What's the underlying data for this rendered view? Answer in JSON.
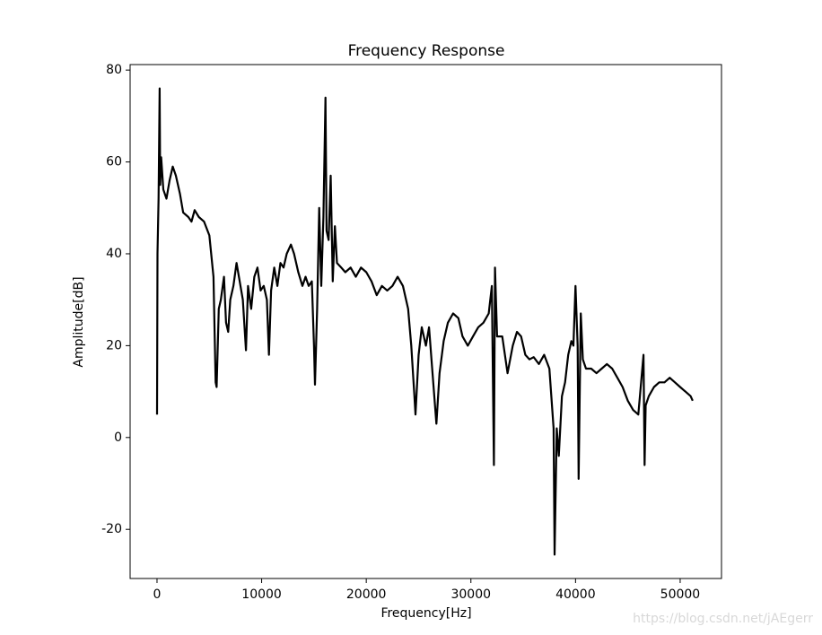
{
  "chart_data": {
    "type": "line",
    "title": "Frequency Response",
    "x_label": "Frequency[Hz]",
    "y_label": "Amplitude[dB]",
    "watermark": "https://blog.csdn.net/jAEgerr",
    "xlim": [
      -2570,
      53950
    ],
    "ylim": [
      -30.7,
      81.2
    ],
    "xticks": [
      0,
      10000,
      20000,
      30000,
      40000,
      50000
    ],
    "yticks": [
      -20,
      0,
      20,
      40,
      60,
      80
    ],
    "series": [
      {
        "color": "#000000",
        "x": [
          0,
          50,
          150,
          250,
          300,
          400,
          600,
          900,
          1200,
          1500,
          1800,
          2200,
          2500,
          3000,
          3300,
          3600,
          4000,
          4500,
          5000,
          5400,
          5600,
          5700,
          5900,
          6100,
          6400,
          6600,
          6800,
          7000,
          7300,
          7600,
          7900,
          8200,
          8500,
          8700,
          9000,
          9300,
          9600,
          9900,
          10200,
          10500,
          10700,
          10900,
          11200,
          11500,
          11800,
          12100,
          12400,
          12800,
          13100,
          13500,
          13900,
          14200,
          14500,
          14800,
          15000,
          15100,
          15300,
          15500,
          15700,
          15900,
          16100,
          16200,
          16400,
          16600,
          16800,
          17000,
          17200,
          17600,
          18000,
          18500,
          19000,
          19500,
          20000,
          20500,
          21000,
          21500,
          22000,
          22500,
          23000,
          23500,
          24000,
          24300,
          24600,
          24700,
          25000,
          25300,
          25700,
          26000,
          26300,
          26700,
          27000,
          27400,
          27800,
          28300,
          28800,
          29200,
          29700,
          30200,
          30700,
          31200,
          31700,
          32000,
          32200,
          32300,
          32500,
          33000,
          33500,
          34000,
          34400,
          34800,
          35200,
          35600,
          36000,
          36500,
          37000,
          37500,
          37900,
          38000,
          38200,
          38400,
          38700,
          39000,
          39300,
          39600,
          39800,
          40000,
          40200,
          40300,
          40500,
          40700,
          41000,
          41500,
          42000,
          42500,
          43000,
          43500,
          44000,
          44500,
          45000,
          45500,
          46000,
          46500,
          46600,
          46700,
          47000,
          47500,
          48000,
          48500,
          49000,
          49500,
          50000,
          50500,
          51000,
          51200
        ],
        "values": [
          5,
          40,
          52,
          76,
          55,
          61,
          54,
          52,
          56,
          59,
          57,
          53,
          49,
          48,
          47,
          49.5,
          48,
          47,
          44,
          35,
          12,
          11,
          28,
          30,
          35,
          25,
          23,
          30,
          33,
          38,
          34,
          30,
          19,
          33,
          28,
          35,
          37,
          32,
          33,
          30,
          18,
          32,
          37,
          33,
          38,
          37,
          40,
          42,
          40,
          36,
          33,
          35,
          33,
          34,
          20,
          11.5,
          28,
          50,
          33,
          48,
          74,
          45,
          43,
          57,
          34,
          46,
          38,
          37,
          36,
          37,
          35,
          37,
          36,
          34,
          31,
          33,
          32,
          33,
          35,
          33,
          28,
          20,
          9,
          5,
          18,
          24,
          20,
          24,
          15,
          3,
          14,
          21,
          25,
          27,
          26,
          22,
          20,
          22,
          24,
          25,
          27,
          33,
          -6,
          37,
          22,
          22,
          14,
          20,
          23,
          22,
          18,
          17,
          17.5,
          16,
          18,
          15,
          2,
          -25.5,
          2,
          -4,
          9,
          12,
          18,
          21,
          20,
          33,
          20,
          -9,
          27,
          17,
          15,
          15,
          14,
          15,
          16,
          15,
          13,
          11,
          8,
          6,
          5,
          18,
          -6,
          7,
          9,
          11,
          12,
          12,
          13,
          12,
          11,
          10,
          9,
          8
        ]
      }
    ]
  }
}
